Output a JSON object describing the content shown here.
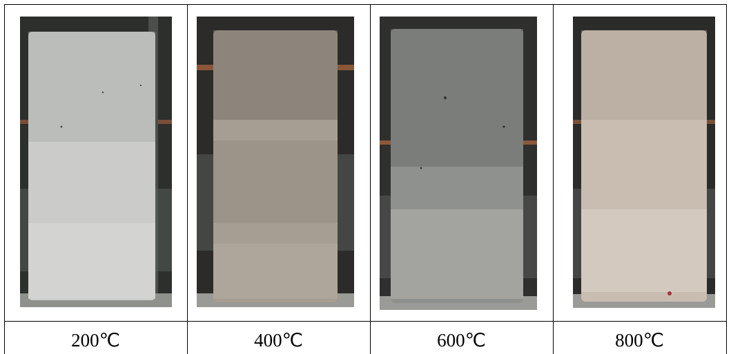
{
  "specimens": [
    {
      "temperature": "200℃",
      "tone": "#cbccca",
      "shade": "#aeb0ad",
      "stain": "#b7b8b5"
    },
    {
      "temperature": "400℃",
      "tone": "#a79e93",
      "shade": "#7c756b",
      "stain": "#6f6a61"
    },
    {
      "temperature": "600℃",
      "tone": "#8f918e",
      "shade": "#6d6f6c",
      "stain": "#b5b4af"
    },
    {
      "temperature": "800℃",
      "tone": "#c9bdb1",
      "shade": "#ab9f92",
      "stain": "#ddd6cd"
    }
  ]
}
